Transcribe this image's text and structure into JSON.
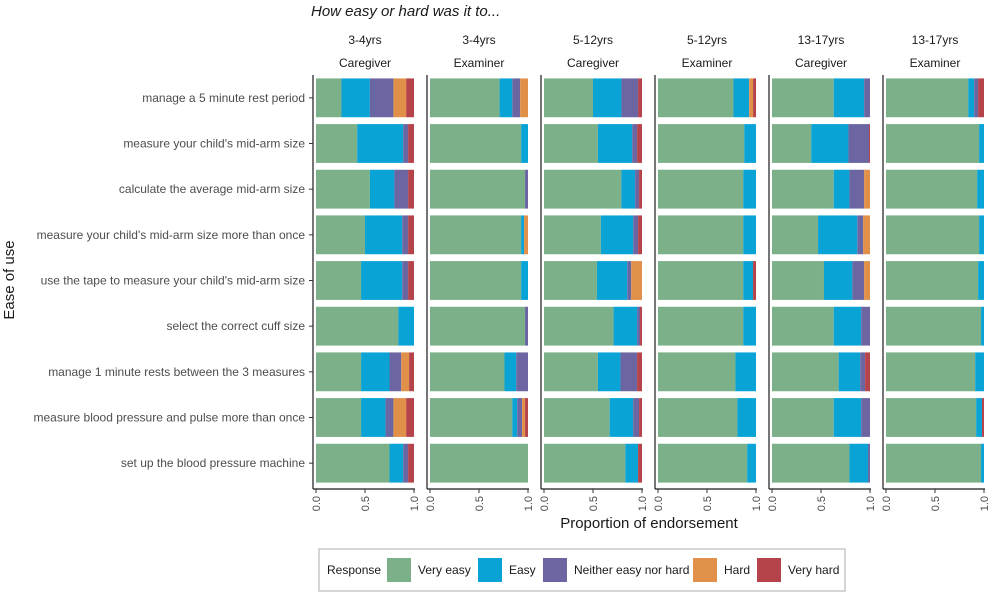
{
  "chart_data": {
    "type": "bar",
    "orientation": "horizontal",
    "stacked": true,
    "title": "How easy or hard was it to...",
    "xlabel": "Proportion of endorsement",
    "ylabel": "Ease of use",
    "xlim": [
      0,
      1
    ],
    "xticks": [
      "0.0",
      "0.5",
      "1.0"
    ],
    "legend_title": "Response",
    "legend_position": "bottom",
    "series": [
      {
        "name": "Very easy",
        "color": "#7bb088"
      },
      {
        "name": "Easy",
        "color": "#0aa3d6"
      },
      {
        "name": "Neither easy nor hard",
        "color": "#6b66a1"
      },
      {
        "name": "Hard",
        "color": "#e09048"
      },
      {
        "name": "Very hard",
        "color": "#b5434a"
      }
    ],
    "categories": [
      "manage a 5 minute rest period",
      "measure your child's mid-arm size",
      "calculate the average mid-arm size",
      "measure your child's mid-arm size more than once",
      "use the tape to measure your child's mid-arm size",
      "select the correct cuff size",
      "manage 1 minute rests between the 3 measures",
      "measure blood pressure and pulse more than once",
      "set up the blood pressure machine"
    ],
    "panels": [
      {
        "age": "3-4yrs",
        "rater": "Caregiver",
        "values": [
          [
            0.26,
            0.29,
            0.24,
            0.13,
            0.08
          ],
          [
            0.42,
            0.47,
            0.05,
            0.0,
            0.06
          ],
          [
            0.55,
            0.25,
            0.14,
            0.0,
            0.06
          ],
          [
            0.5,
            0.38,
            0.06,
            0.0,
            0.06
          ],
          [
            0.46,
            0.42,
            0.06,
            0.0,
            0.06
          ],
          [
            0.84,
            0.16,
            0.0,
            0.0,
            0.0
          ],
          [
            0.46,
            0.29,
            0.12,
            0.08,
            0.05
          ],
          [
            0.46,
            0.25,
            0.08,
            0.13,
            0.08
          ],
          [
            0.75,
            0.14,
            0.05,
            0.0,
            0.06
          ]
        ]
      },
      {
        "age": "3-4yrs",
        "rater": "Examiner",
        "values": [
          [
            0.71,
            0.13,
            0.08,
            0.08,
            0.0
          ],
          [
            0.93,
            0.07,
            0.0,
            0.0,
            0.0
          ],
          [
            0.97,
            0.0,
            0.03,
            0.0,
            0.0
          ],
          [
            0.93,
            0.03,
            0.0,
            0.04,
            0.0
          ],
          [
            0.93,
            0.07,
            0.0,
            0.0,
            0.0
          ],
          [
            0.97,
            0.0,
            0.03,
            0.0,
            0.0
          ],
          [
            0.76,
            0.12,
            0.12,
            0.0,
            0.0
          ],
          [
            0.84,
            0.05,
            0.05,
            0.03,
            0.03
          ],
          [
            1.0,
            0.0,
            0.0,
            0.0,
            0.0
          ]
        ]
      },
      {
        "age": "5-12yrs",
        "rater": "Caregiver",
        "values": [
          [
            0.5,
            0.29,
            0.17,
            0.0,
            0.04
          ],
          [
            0.55,
            0.35,
            0.05,
            0.0,
            0.05
          ],
          [
            0.79,
            0.14,
            0.04,
            0.0,
            0.03
          ],
          [
            0.58,
            0.33,
            0.05,
            0.0,
            0.04
          ],
          [
            0.54,
            0.31,
            0.04,
            0.11,
            0.0
          ],
          [
            0.71,
            0.24,
            0.03,
            0.0,
            0.02
          ],
          [
            0.55,
            0.23,
            0.17,
            0.0,
            0.05
          ],
          [
            0.67,
            0.24,
            0.06,
            0.0,
            0.03
          ],
          [
            0.83,
            0.13,
            0.0,
            0.0,
            0.04
          ]
        ]
      },
      {
        "age": "5-12yrs",
        "rater": "Examiner",
        "values": [
          [
            0.77,
            0.16,
            0.0,
            0.04,
            0.03
          ],
          [
            0.88,
            0.12,
            0.0,
            0.0,
            0.0
          ],
          [
            0.87,
            0.13,
            0.0,
            0.0,
            0.0
          ],
          [
            0.87,
            0.13,
            0.0,
            0.0,
            0.0
          ],
          [
            0.87,
            0.1,
            0.0,
            0.0,
            0.03
          ],
          [
            0.87,
            0.13,
            0.0,
            0.0,
            0.0
          ],
          [
            0.79,
            0.21,
            0.0,
            0.0,
            0.0
          ],
          [
            0.81,
            0.19,
            0.0,
            0.0,
            0.0
          ],
          [
            0.91,
            0.09,
            0.0,
            0.0,
            0.0
          ]
        ]
      },
      {
        "age": "13-17yrs",
        "rater": "Caregiver",
        "values": [
          [
            0.63,
            0.31,
            0.06,
            0.0,
            0.0
          ],
          [
            0.4,
            0.38,
            0.21,
            0.0,
            0.01
          ],
          [
            0.63,
            0.16,
            0.15,
            0.06,
            0.0
          ],
          [
            0.47,
            0.4,
            0.06,
            0.07,
            0.0
          ],
          [
            0.53,
            0.29,
            0.12,
            0.06,
            0.0
          ],
          [
            0.63,
            0.28,
            0.09,
            0.0,
            0.0
          ],
          [
            0.68,
            0.22,
            0.05,
            0.0,
            0.05
          ],
          [
            0.63,
            0.28,
            0.09,
            0.0,
            0.0
          ],
          [
            0.79,
            0.19,
            0.02,
            0.0,
            0.0
          ]
        ]
      },
      {
        "age": "13-17yrs",
        "rater": "Examiner",
        "values": [
          [
            0.84,
            0.06,
            0.04,
            0.0,
            0.06
          ],
          [
            0.95,
            0.05,
            0.0,
            0.0,
            0.0
          ],
          [
            0.93,
            0.07,
            0.0,
            0.0,
            0.0
          ],
          [
            0.95,
            0.05,
            0.0,
            0.0,
            0.0
          ],
          [
            0.94,
            0.06,
            0.0,
            0.0,
            0.0
          ],
          [
            0.97,
            0.03,
            0.0,
            0.0,
            0.0
          ],
          [
            0.91,
            0.09,
            0.0,
            0.0,
            0.0
          ],
          [
            0.92,
            0.06,
            0.0,
            0.0,
            0.02
          ],
          [
            0.97,
            0.03,
            0.0,
            0.0,
            0.0
          ]
        ]
      }
    ]
  }
}
